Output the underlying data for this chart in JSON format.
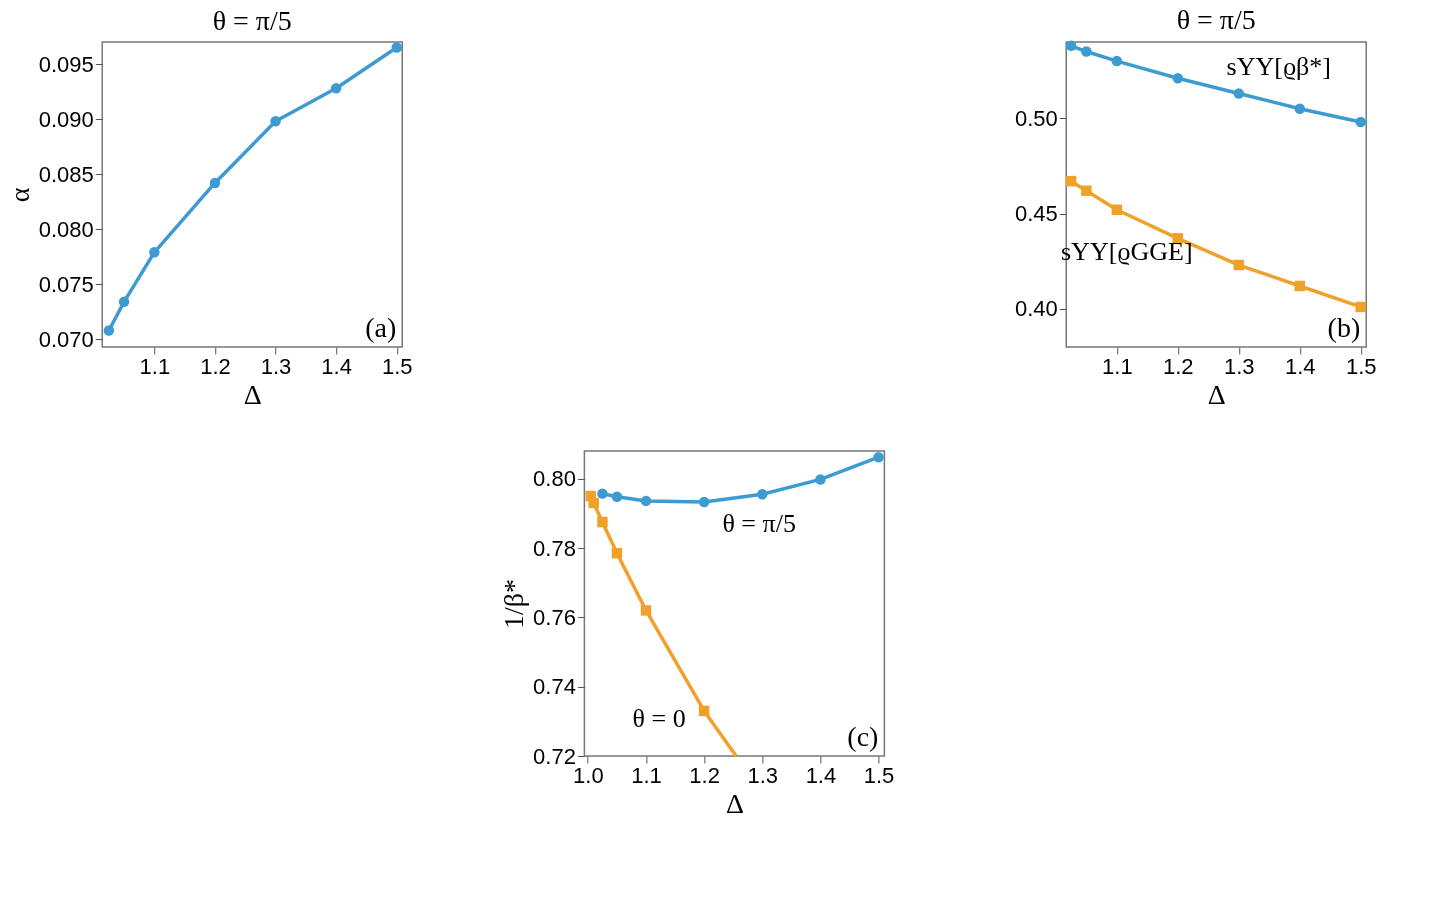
{
  "chart_data": [
    {
      "type": "line",
      "title": "θ = π/5",
      "xlabel": "Δ",
      "ylabel": "α",
      "x": [
        1.025,
        1.05,
        1.1,
        1.2,
        1.3,
        1.4,
        1.5
      ],
      "series": [
        {
          "color": "#3d9bd1",
          "marker": "circle",
          "values": [
            0.0708,
            0.0734,
            0.0779,
            0.0842,
            0.0898,
            0.0928,
            0.0965
          ]
        }
      ],
      "xlim": [
        1.014,
        1.509
      ],
      "xticks": [
        1.1,
        1.2,
        1.3,
        1.4,
        1.5
      ],
      "ylim": [
        0.0693,
        0.097
      ],
      "yticks": [
        {
          "value": 0.07,
          "label": "0.070"
        },
        0.075,
        {
          "value": 0.08,
          "label": "0.080"
        },
        0.085,
        {
          "value": 0.09,
          "label": "0.090"
        },
        0.095
      ],
      "annotations": [
        "(a)"
      ],
      "grid": false,
      "line_style": "solid"
    },
    {
      "type": "line",
      "title": "θ = π/5",
      "xlabel": "Δ",
      "x": [
        1.025,
        1.05,
        1.1,
        1.2,
        1.3,
        1.4,
        1.5
      ],
      "series": [
        {
          "name": "sYY[ϱβ*]",
          "color": "#3d9bd1",
          "marker": "circle",
          "values": [
            0.538,
            0.535,
            0.53,
            0.521,
            0.513,
            0.505,
            0.498
          ]
        },
        {
          "name": "sYY[ϱGGE]",
          "color": "#f0a12a",
          "marker": "square",
          "values": [
            0.467,
            0.462,
            0.452,
            0.437,
            0.423,
            0.412,
            0.401
          ]
        }
      ],
      "xlim": [
        1.017,
        1.509
      ],
      "xticks": [
        1.1,
        1.2,
        1.3,
        1.4,
        1.5
      ],
      "ylim": [
        0.38,
        0.54
      ],
      "yticks": [
        {
          "value": 0.4,
          "label": "0.40"
        },
        0.45,
        {
          "value": 0.5,
          "label": "0.50"
        }
      ],
      "annotations": [
        "(b)"
      ],
      "grid": false,
      "line_style": "solid"
    },
    {
      "type": "line",
      "xlabel": "Δ",
      "ylabel": "1/β*",
      "series": [
        {
          "name": "θ = π/5",
          "color": "#3d9bd1",
          "marker": "circle",
          "x": [
            1.025,
            1.05,
            1.1,
            1.2,
            1.3,
            1.4,
            1.5
          ],
          "values": [
            0.7957,
            0.7948,
            0.7936,
            0.7933,
            0.7955,
            0.7998,
            0.8062
          ]
        },
        {
          "name": "θ = 0",
          "color": "#f0a12a",
          "marker": "square",
          "x": [
            1.005,
            1.01,
            1.025,
            1.05,
            1.1,
            1.2
          ],
          "values": [
            0.795,
            0.793,
            0.7875,
            0.7785,
            0.762,
            0.733
          ]
        },
        {
          "color": "#f0a12a",
          "marker": "none",
          "x": [
            1.2,
            1.255
          ],
          "values": [
            0.733,
            0.72
          ]
        }
      ],
      "xlim": [
        0.994,
        1.51
      ],
      "xticks": [
        {
          "value": 1.0,
          "label": "1.0"
        },
        1.1,
        1.2,
        1.3,
        1.4,
        1.5
      ],
      "ylim": [
        0.72,
        0.808
      ],
      "yticks": [
        0.72,
        0.74,
        0.76,
        0.78,
        {
          "value": 0.8,
          "label": "0.80"
        }
      ],
      "annotations": [
        "(c)"
      ],
      "grid": false,
      "line_style": "solid"
    }
  ]
}
